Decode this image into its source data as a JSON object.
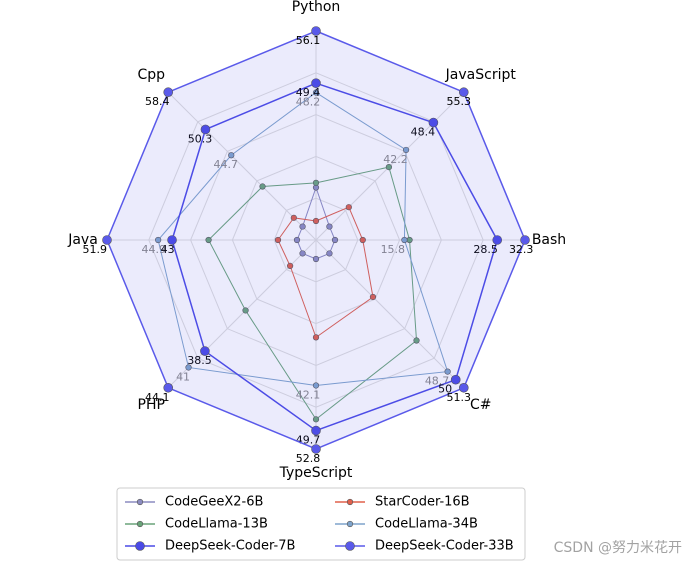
{
  "chart_data": {
    "type": "radar",
    "categories": [
      "Python",
      "JavaScript",
      "Bash",
      "C#",
      "TypeScript",
      "PHP",
      "Java",
      "Cpp"
    ],
    "series": [
      {
        "name": "CodeGeeX2-6B",
        "color": "#8c8cc0",
        "values": [
          36.0,
          24.8,
          6.3,
          29.7,
          20.8,
          23.6,
          25.9,
          29.2
        ]
      },
      {
        "name": "StarCoder-16B",
        "color": "#e0604c",
        "values": [
          31.7,
          29.2,
          10.1,
          36.7,
          34.0,
          25.5,
          28.5,
          31.1
        ]
      },
      {
        "name": "CodeLlama-13B",
        "color": "#6aa47a",
        "values": [
          36.6,
          38.3,
          16.5,
          43.7,
          47.8,
          32.3,
          38.0,
          37.9
        ]
      },
      {
        "name": "CodeLlama-34B",
        "color": "#7fa4cc",
        "values": [
          48.2,
          42.2,
          15.8,
          48.7,
          42.1,
          41.0,
          44.9,
          44.7
        ],
        "labels_color": "#888888"
      },
      {
        "name": "DeepSeek-Coder-7B",
        "color": "#4a4ae6",
        "values": [
          49.4,
          48.4,
          28.5,
          50.0,
          49.7,
          38.5,
          43.0,
          50.3
        ],
        "labels_color": "#000000",
        "big_markers": true
      },
      {
        "name": "DeepSeek-Coder-33B",
        "color": "#5a5aea",
        "values": [
          56.1,
          55.3,
          32.3,
          51.3,
          52.8,
          44.1,
          51.9,
          58.4
        ],
        "labels_color": "#000000",
        "big_markers": true,
        "fill": true
      }
    ],
    "grid": true,
    "legend": "bottom",
    "watermark": "CSDN @努力米花开"
  }
}
